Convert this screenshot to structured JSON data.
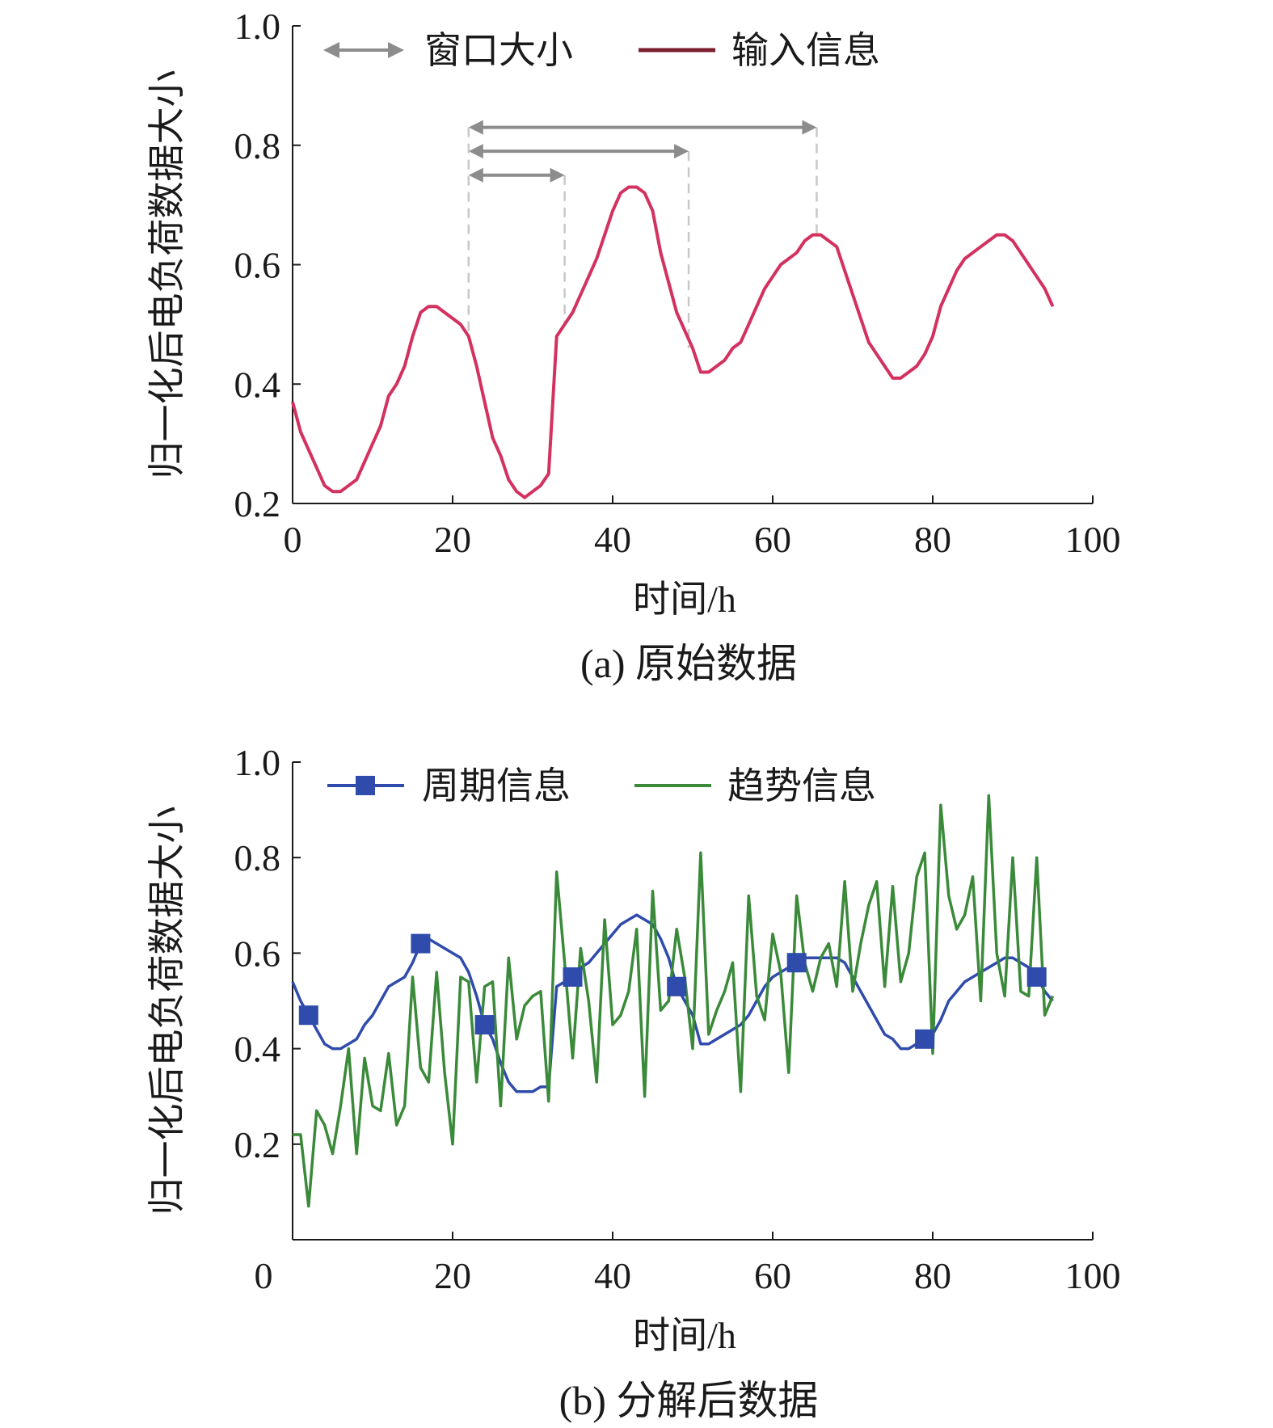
{
  "chart_data": [
    {
      "type": "line",
      "caption": "(a) 原始数据",
      "xlabel": "时间/h",
      "ylabel": "归一化后电负荷数据大小",
      "xlim": [
        0,
        100
      ],
      "ylim": [
        0.2,
        1.0
      ],
      "xticks": [
        "0",
        "20",
        "40",
        "60",
        "80",
        "100"
      ],
      "yticks": [
        "0.2",
        "0.4",
        "0.6",
        "0.8",
        "1.0"
      ],
      "grid": false,
      "legend_position": "top",
      "legend": [
        {
          "label": "窗口大小",
          "kind": "double-arrow",
          "color": "#8c8c8c"
        },
        {
          "label": "输入信息",
          "kind": "line",
          "color": "#7a1f2e"
        }
      ],
      "series": [
        {
          "name": "输入信息",
          "color": "#d3315f",
          "x": [
            0,
            1,
            2,
            3,
            4,
            5,
            6,
            7,
            8,
            9,
            10,
            11,
            12,
            13,
            14,
            15,
            16,
            17,
            18,
            19,
            20,
            21,
            22,
            23,
            24,
            25,
            26,
            27,
            28,
            29,
            30,
            31,
            32,
            33,
            34,
            35,
            36,
            37,
            38,
            39,
            40,
            41,
            42,
            43,
            44,
            45,
            46,
            47,
            48,
            49,
            50,
            51,
            52,
            53,
            54,
            55,
            56,
            57,
            58,
            59,
            60,
            61,
            62,
            63,
            64,
            65,
            66,
            67,
            68,
            69,
            70,
            71,
            72,
            73,
            74,
            75,
            76,
            77,
            78,
            79,
            80,
            81,
            82,
            83,
            84,
            85,
            86,
            87,
            88,
            89,
            90,
            91,
            92,
            93,
            94,
            95
          ],
          "y": [
            0.37,
            0.32,
            0.29,
            0.26,
            0.23,
            0.22,
            0.22,
            0.23,
            0.24,
            0.27,
            0.3,
            0.33,
            0.38,
            0.4,
            0.43,
            0.48,
            0.52,
            0.53,
            0.53,
            0.52,
            0.51,
            0.5,
            0.48,
            0.43,
            0.37,
            0.31,
            0.28,
            0.24,
            0.22,
            0.21,
            0.22,
            0.23,
            0.25,
            0.48,
            0.5,
            0.52,
            0.55,
            0.58,
            0.61,
            0.65,
            0.69,
            0.72,
            0.73,
            0.73,
            0.72,
            0.69,
            0.62,
            0.57,
            0.52,
            0.49,
            0.46,
            0.42,
            0.42,
            0.43,
            0.44,
            0.46,
            0.47,
            0.5,
            0.53,
            0.56,
            0.58,
            0.6,
            0.61,
            0.62,
            0.64,
            0.65,
            0.65,
            0.64,
            0.63,
            0.59,
            0.55,
            0.51,
            0.47,
            0.45,
            0.43,
            0.41,
            0.41,
            0.42,
            0.43,
            0.45,
            0.48,
            0.53,
            0.56,
            0.59,
            0.61,
            0.62,
            0.63,
            0.64,
            0.65,
            0.65,
            0.64,
            0.62,
            0.6,
            0.58,
            0.56,
            0.53
          ]
        }
      ],
      "window_arrows": [
        {
          "from": 22,
          "to": 34,
          "y": 0.75
        },
        {
          "from": 22,
          "to": 49.5,
          "y": 0.79
        },
        {
          "from": 22,
          "to": 65.5,
          "y": 0.83
        }
      ]
    },
    {
      "type": "line",
      "caption": "(b) 分解后数据",
      "xlabel": "时间/h",
      "ylabel": "归一化后电负荷数据大小",
      "xlim": [
        0,
        100
      ],
      "ylim": [
        0,
        1.0
      ],
      "xticks": [
        "0",
        "20",
        "40",
        "60",
        "80",
        "100"
      ],
      "yticks": [
        "0.2",
        "0.4",
        "0.6",
        "0.8",
        "1.0"
      ],
      "grid": false,
      "legend_position": "top",
      "series": [
        {
          "name": "周期信息",
          "color": "#2f4bab",
          "marker": "square",
          "x": [
            0,
            1,
            2,
            3,
            4,
            5,
            6,
            7,
            8,
            9,
            10,
            11,
            12,
            13,
            14,
            15,
            16,
            17,
            18,
            19,
            20,
            21,
            22,
            23,
            24,
            25,
            26,
            27,
            28,
            29,
            30,
            31,
            32,
            33,
            34,
            35,
            36,
            37,
            38,
            39,
            40,
            41,
            42,
            43,
            44,
            45,
            46,
            47,
            48,
            49,
            50,
            51,
            52,
            53,
            54,
            55,
            56,
            57,
            58,
            59,
            60,
            61,
            62,
            63,
            64,
            65,
            66,
            67,
            68,
            69,
            70,
            71,
            72,
            73,
            74,
            75,
            76,
            77,
            78,
            79,
            80,
            81,
            82,
            83,
            84,
            85,
            86,
            87,
            88,
            89,
            90,
            91,
            92,
            93,
            94,
            95
          ],
          "y": [
            0.54,
            0.5,
            0.47,
            0.44,
            0.41,
            0.4,
            0.4,
            0.41,
            0.42,
            0.45,
            0.47,
            0.5,
            0.53,
            0.54,
            0.55,
            0.58,
            0.62,
            0.63,
            0.62,
            0.61,
            0.6,
            0.59,
            0.56,
            0.51,
            0.45,
            0.42,
            0.37,
            0.33,
            0.31,
            0.31,
            0.31,
            0.32,
            0.32,
            0.53,
            0.54,
            0.55,
            0.57,
            0.58,
            0.6,
            0.62,
            0.64,
            0.66,
            0.67,
            0.68,
            0.67,
            0.66,
            0.63,
            0.59,
            0.53,
            0.5,
            0.47,
            0.41,
            0.41,
            0.42,
            0.43,
            0.44,
            0.45,
            0.47,
            0.5,
            0.53,
            0.55,
            0.56,
            0.57,
            0.58,
            0.59,
            0.59,
            0.59,
            0.59,
            0.59,
            0.58,
            0.55,
            0.52,
            0.49,
            0.46,
            0.43,
            0.42,
            0.4,
            0.4,
            0.41,
            0.42,
            0.43,
            0.46,
            0.5,
            0.52,
            0.54,
            0.55,
            0.56,
            0.57,
            0.58,
            0.59,
            0.59,
            0.58,
            0.57,
            0.55,
            0.52,
            0.5
          ],
          "marker_indices": [
            2,
            16,
            24,
            35,
            48,
            63,
            79,
            93
          ]
        },
        {
          "name": "趋势信息",
          "color": "#3a8a3a",
          "x": [
            0,
            1,
            2,
            3,
            4,
            5,
            6,
            7,
            8,
            9,
            10,
            11,
            12,
            13,
            14,
            15,
            16,
            17,
            18,
            19,
            20,
            21,
            22,
            23,
            24,
            25,
            26,
            27,
            28,
            29,
            30,
            31,
            32,
            33,
            34,
            35,
            36,
            37,
            38,
            39,
            40,
            41,
            42,
            43,
            44,
            45,
            46,
            47,
            48,
            49,
            50,
            51,
            52,
            53,
            54,
            55,
            56,
            57,
            58,
            59,
            60,
            61,
            62,
            63,
            64,
            65,
            66,
            67,
            68,
            69,
            70,
            71,
            72,
            73,
            74,
            75,
            76,
            77,
            78,
            79,
            80,
            81,
            82,
            83,
            84,
            85,
            86,
            87,
            88,
            89,
            90,
            91,
            92,
            93,
            94,
            95
          ],
          "y": [
            0.22,
            0.22,
            0.07,
            0.27,
            0.24,
            0.18,
            0.28,
            0.4,
            0.18,
            0.38,
            0.28,
            0.27,
            0.39,
            0.24,
            0.28,
            0.55,
            0.36,
            0.33,
            0.56,
            0.35,
            0.2,
            0.55,
            0.54,
            0.33,
            0.53,
            0.54,
            0.28,
            0.59,
            0.42,
            0.49,
            0.51,
            0.52,
            0.29,
            0.77,
            0.58,
            0.38,
            0.61,
            0.5,
            0.33,
            0.67,
            0.45,
            0.47,
            0.52,
            0.65,
            0.3,
            0.73,
            0.48,
            0.5,
            0.65,
            0.55,
            0.4,
            0.81,
            0.43,
            0.48,
            0.52,
            0.58,
            0.31,
            0.72,
            0.51,
            0.46,
            0.64,
            0.56,
            0.35,
            0.72,
            0.58,
            0.52,
            0.59,
            0.62,
            0.53,
            0.75,
            0.52,
            0.62,
            0.7,
            0.75,
            0.53,
            0.74,
            0.54,
            0.6,
            0.76,
            0.81,
            0.39,
            0.91,
            0.72,
            0.65,
            0.68,
            0.76,
            0.5,
            0.93,
            0.6,
            0.51,
            0.8,
            0.52,
            0.51,
            0.8,
            0.47,
            0.51
          ]
        }
      ]
    }
  ]
}
